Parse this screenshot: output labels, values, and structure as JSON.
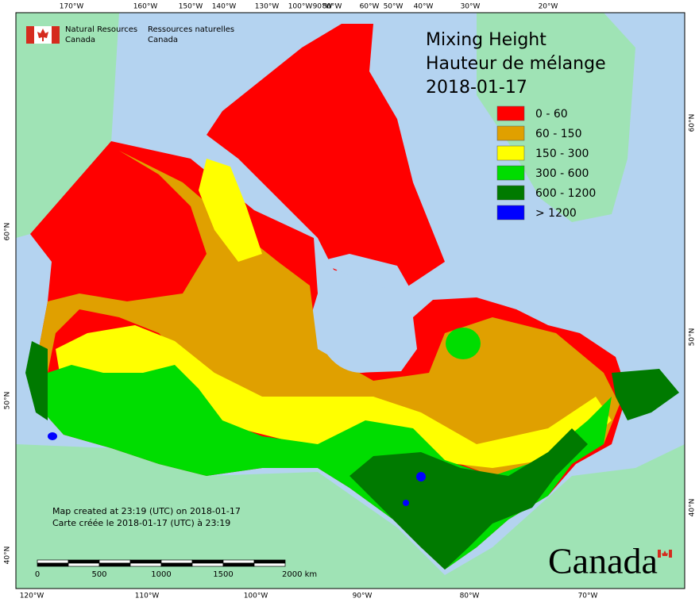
{
  "header": {
    "en": [
      "Natural Resources",
      "Canada"
    ],
    "fr": [
      "Ressources naturelles",
      "Canada"
    ]
  },
  "title": [
    "Mixing Height",
    "Hauteur de mélange",
    "2018-01-17"
  ],
  "legend": [
    {
      "label": "0 - 60",
      "color": "#ff0000"
    },
    {
      "label": "60 - 150",
      "color": "#e0a000"
    },
    {
      "label": "150 - 300",
      "color": "#ffff00"
    },
    {
      "label": "300 - 600",
      "color": "#00dd00"
    },
    {
      "label": "600 - 1200",
      "color": "#007a00"
    },
    {
      "label": "> 1200",
      "color": "#0000ff"
    }
  ],
  "graticule": {
    "top": [
      "170°W",
      "160°W",
      "150°W",
      "140°W",
      "130°W",
      "100°W",
      "90°W",
      "80°W",
      "60°W",
      "50°W",
      "40°W",
      "30°W",
      "20°W"
    ],
    "bottom": [
      "120°W",
      "110°W",
      "100°W",
      "90°W",
      "80°W",
      "70°W"
    ],
    "left": [
      "60°N",
      "50°N",
      "40°N"
    ],
    "right": [
      "60°N",
      "50°N",
      "40°N"
    ]
  },
  "scale": [
    "0",
    "500",
    "1000",
    "1500",
    "2000 km"
  ],
  "notes": [
    "Map created at 23:19 (UTC) on 2018-01-17",
    "Carte créée le 2018-01-17 (UTC) à 23:19"
  ],
  "wordmark": "Canada"
}
